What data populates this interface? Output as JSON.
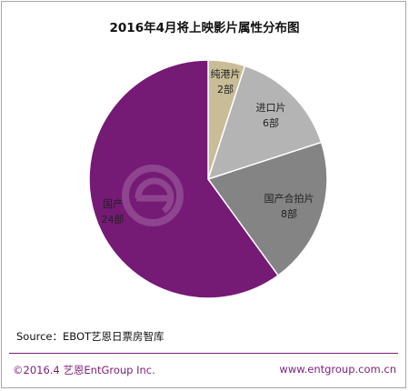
{
  "chart_data": {
    "type": "pie",
    "title": "2016年4月将上映影片属性分布图",
    "slices": [
      {
        "name": "纯港片",
        "value": 2,
        "value_label": "2部",
        "color": "#c9bd98"
      },
      {
        "name": "进口片",
        "value": 6,
        "value_label": "6部",
        "color": "#b4b4b4"
      },
      {
        "name": "国产合拍片",
        "value": 8,
        "value_label": "8部",
        "color": "#848484"
      },
      {
        "name": "国产",
        "value": 24,
        "value_label": "24部",
        "color": "#751a75"
      }
    ],
    "start_angle_deg": 0,
    "direction": "clockwise"
  },
  "source": "Source：EBOT艺恩日票房智库",
  "footer": {
    "left": "©2016.4 艺恩EntGroup Inc.",
    "right": "www.entgroup.com.cn"
  },
  "watermark": {
    "text": "艺恩 ent"
  },
  "colors": {
    "accent": "#7b1f78",
    "frame": "#a6a6a6"
  }
}
